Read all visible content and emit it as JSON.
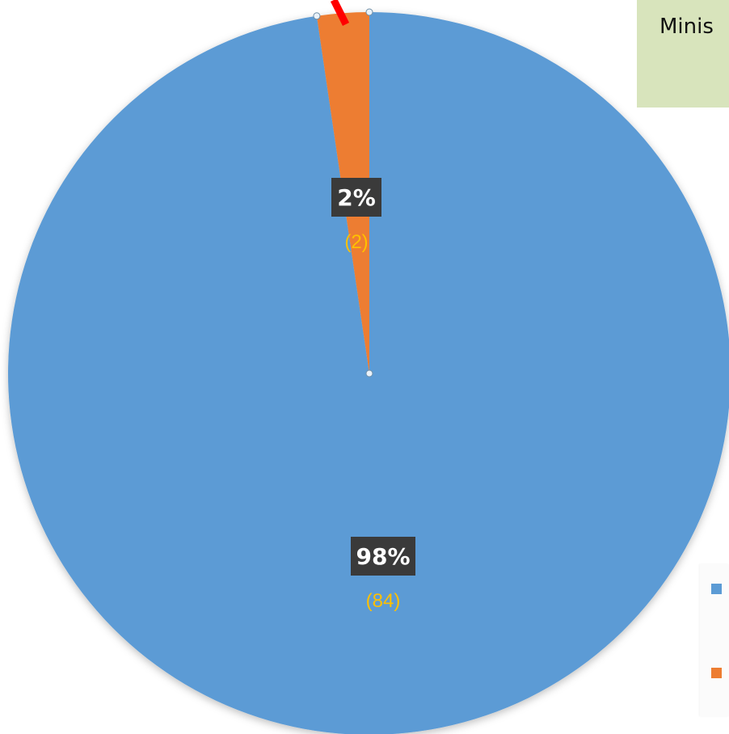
{
  "chart_data": {
    "type": "pie",
    "slices": [
      {
        "count": 84,
        "percent_label": "98%",
        "count_label": "(84)",
        "color": "#5b9bd5"
      },
      {
        "count": 2,
        "percent_label": "2%",
        "count_label": "(2)",
        "color": "#ed7d31"
      }
    ],
    "data_label_box_color": "#3a3a3a",
    "data_label_text_color": "#ffffff",
    "count_label_color": "#ffc000",
    "legend_placement": "right",
    "legend_entries": [
      {
        "color": "#5b9bd5"
      },
      {
        "color": "#ed7d31"
      }
    ]
  },
  "annotation": {
    "text": "Minis",
    "background": "#d8e4bc",
    "pointer_color": "#ff0000"
  }
}
